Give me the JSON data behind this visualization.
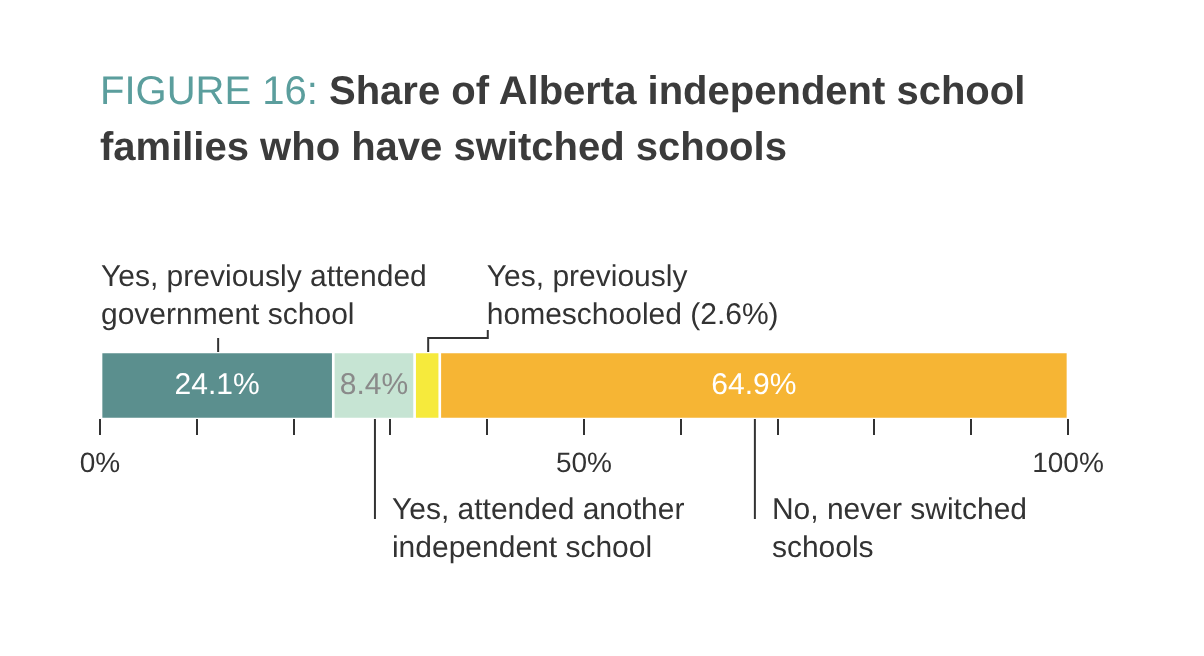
{
  "chart_data": {
    "type": "bar",
    "title": "FIGURE 16: Share of Alberta independent school families who have switched schools",
    "orientation": "horizontal",
    "stacked": true,
    "categories": [
      null
    ],
    "series": [
      {
        "name": "Yes, previously attended government school",
        "color": "#5b8f8e",
        "values": [
          24.1
        ],
        "value_labels": [
          "24.1%"
        ]
      },
      {
        "name": "Yes, attended another independent school",
        "color": "#c6e4d3",
        "values": [
          8.4
        ],
        "value_labels": [
          "8.4%"
        ]
      },
      {
        "name": "Yes, previously homeschooled (2.6%)",
        "color": "#f6ea3c",
        "values": [
          2.6
        ],
        "value_labels": [
          null
        ]
      },
      {
        "name": "No, never switched schools",
        "color": "#f6b534",
        "values": [
          64.9
        ],
        "value_labels": [
          "64.9%"
        ]
      }
    ],
    "xlim": [
      0,
      100
    ],
    "xticks": [
      {
        "value": 0,
        "label": "0%"
      },
      {
        "value": 10,
        "label": null
      },
      {
        "value": 20,
        "label": null
      },
      {
        "value": 30,
        "label": null
      },
      {
        "value": 40,
        "label": null
      },
      {
        "value": 50,
        "label": "50%"
      },
      {
        "value": 60,
        "label": null
      },
      {
        "value": 70,
        "label": null
      },
      {
        "value": 80,
        "label": null
      },
      {
        "value": 90,
        "label": null
      },
      {
        "value": 100,
        "label": "100%"
      }
    ],
    "grid": false,
    "legend": false
  }
}
